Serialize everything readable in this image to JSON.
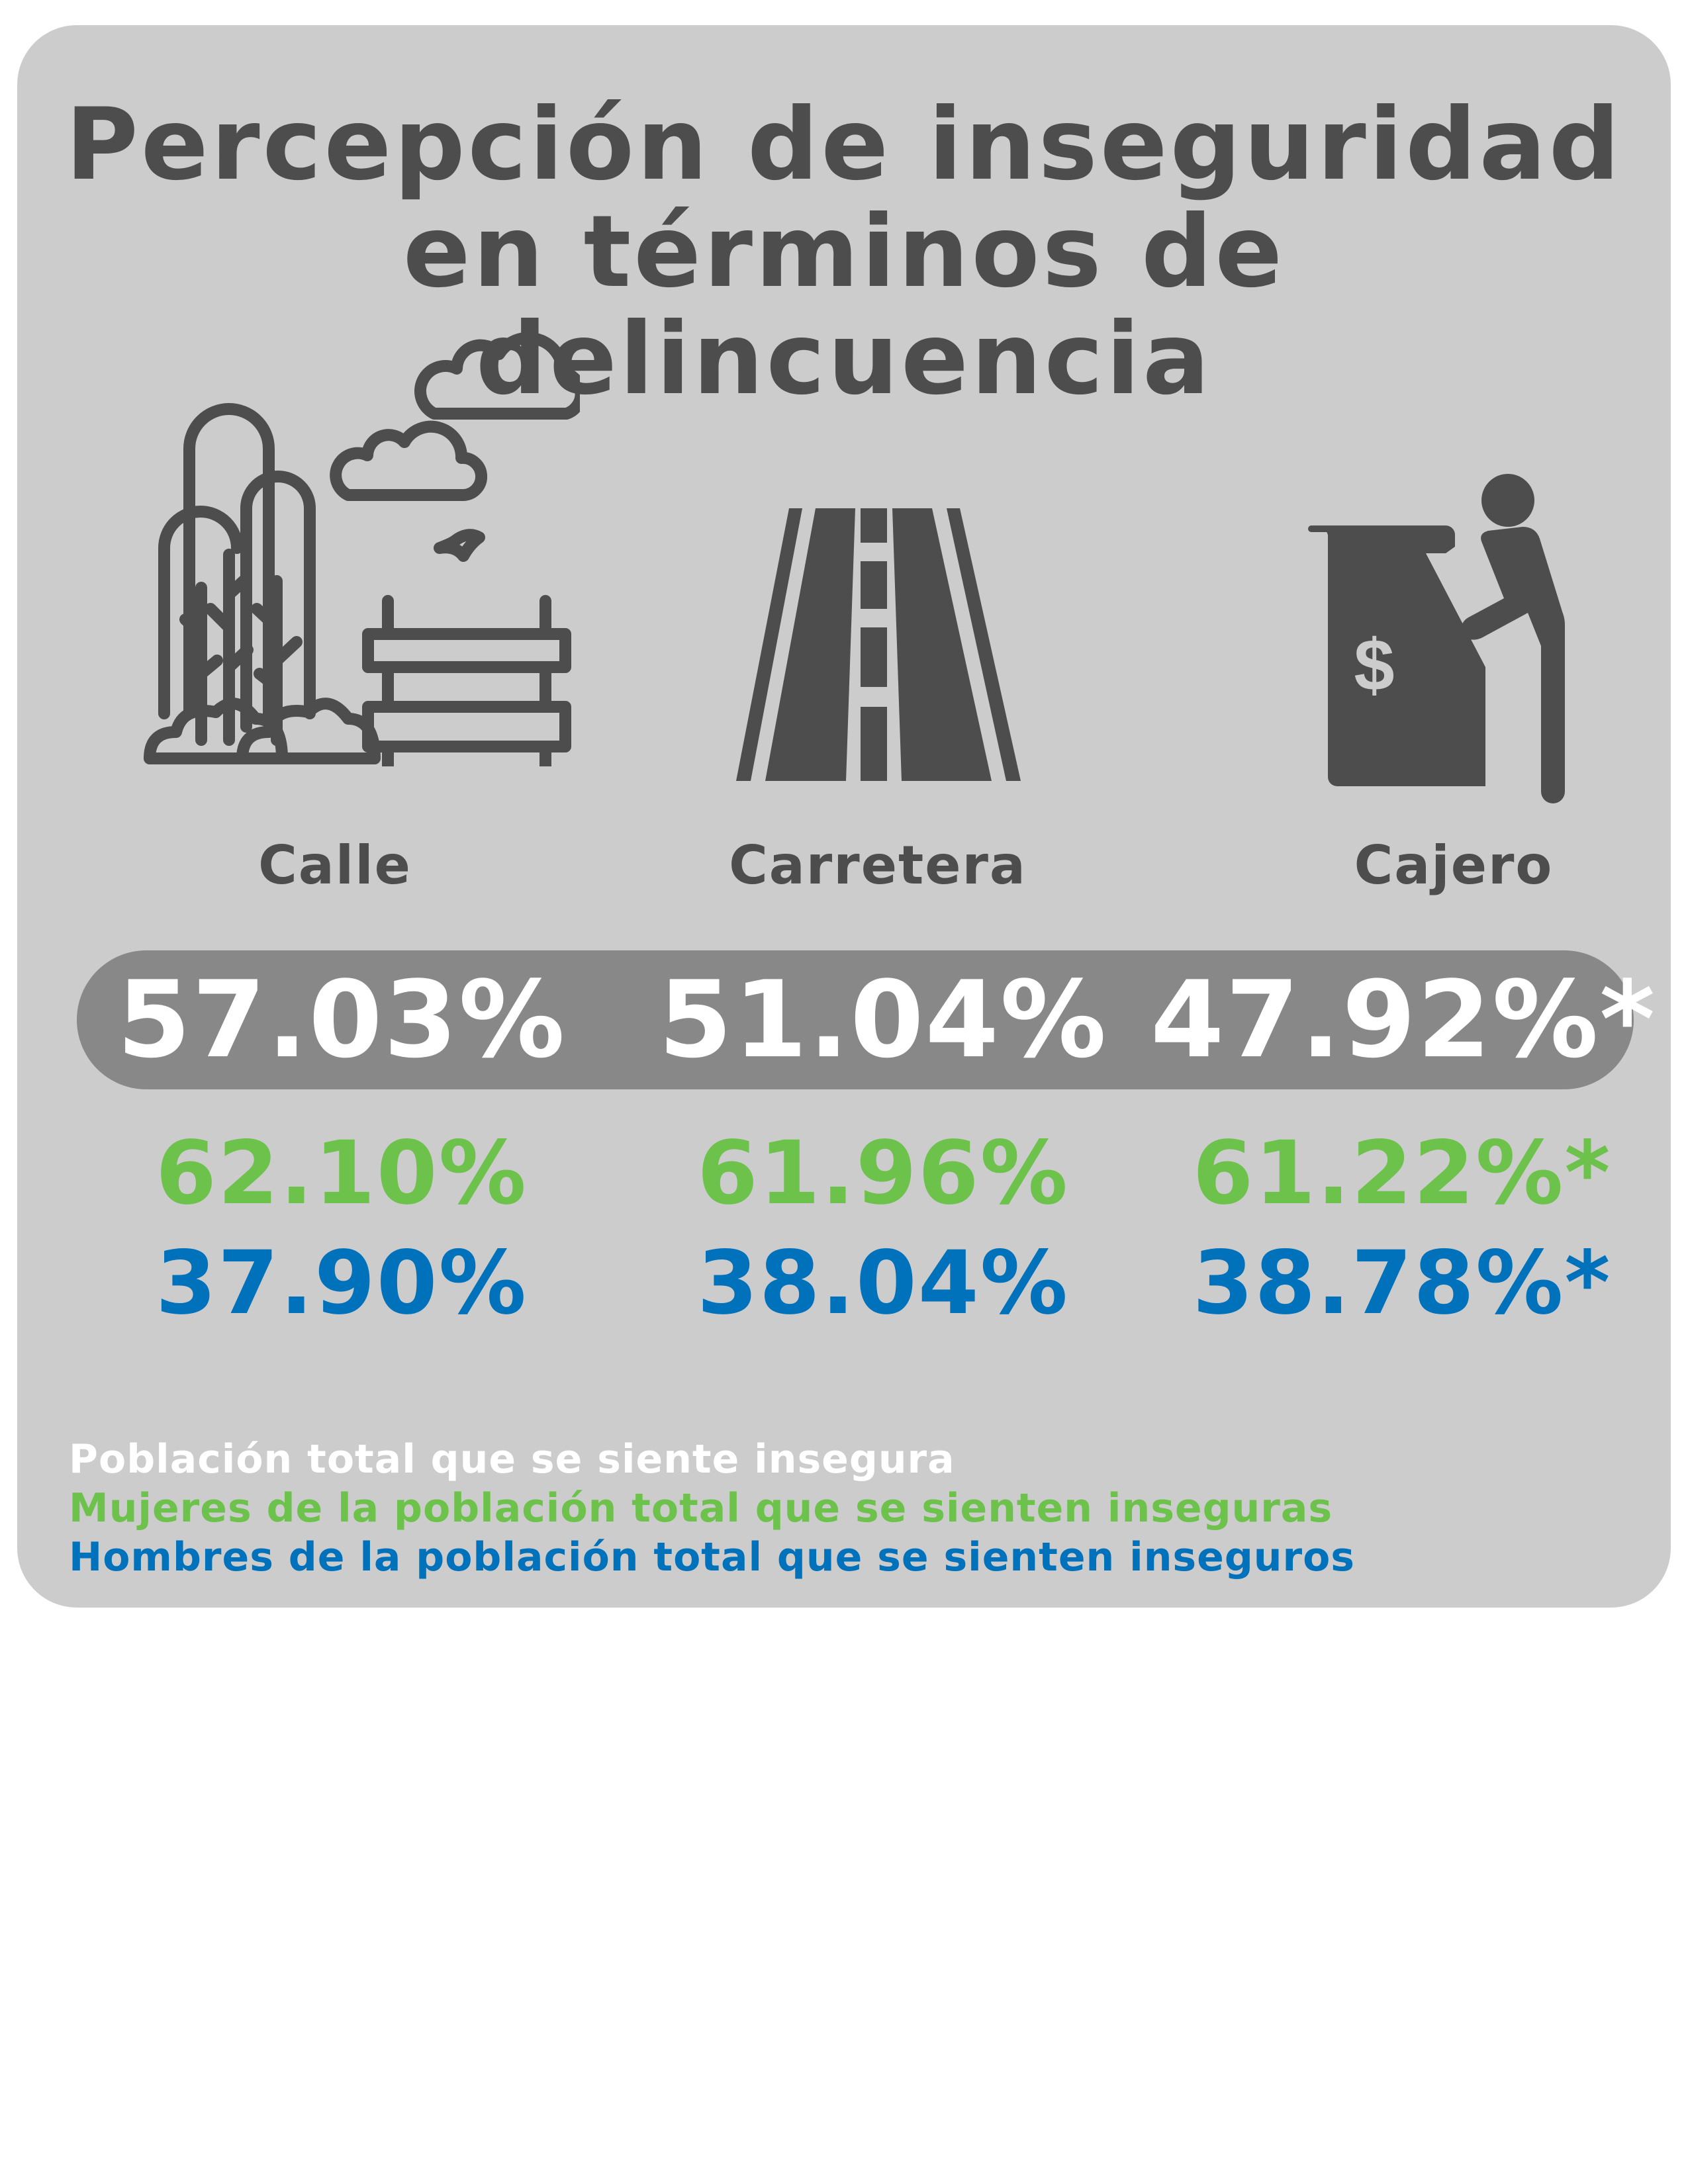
{
  "title": {
    "line1": "Percepción de inseguridad",
    "line2": "en términos de delincuencia"
  },
  "categories": [
    {
      "label": "Calle",
      "icon": "park-bench-trees-icon",
      "total": "57.03%",
      "women": "62.10%",
      "men": "37.90%"
    },
    {
      "label": "Carretera",
      "icon": "road-icon",
      "total": "51.04%",
      "women": "61.96%",
      "men": "38.04%"
    },
    {
      "label": "Cajero",
      "icon": "atm-person-icon",
      "total": "47.92%*",
      "women": "61.22%*",
      "men": "38.78%*"
    }
  ],
  "legend": {
    "total": "Población total que se siente insegura",
    "women": "Mujeres de la población total que se sienten inseguras",
    "men": "Hombres de la población total que se sienten inseguros"
  },
  "colors": {
    "card_background": "#cccccc",
    "pill_background": "#888888",
    "icon_gray": "#4d4d4d",
    "total_text": "#ffffff",
    "women_text": "#6cc24a",
    "men_text": "#0071bb"
  }
}
